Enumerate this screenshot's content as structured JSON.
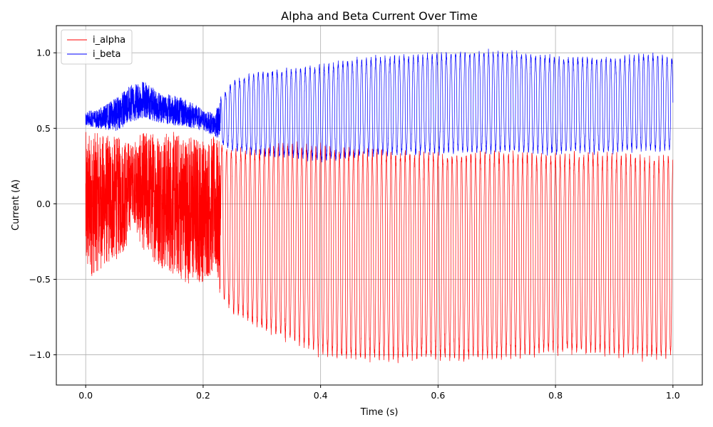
{
  "chart_data": {
    "type": "line",
    "title": "Alpha and Beta Current Over Time",
    "xlabel": "Time (s)",
    "ylabel": "Current (A)",
    "xlim": [
      -0.05,
      1.05
    ],
    "ylim": [
      -1.2,
      1.18
    ],
    "x_ticks": [
      0.0,
      0.2,
      0.4,
      0.6,
      0.8,
      1.0
    ],
    "x_tick_labels": [
      "0.0",
      "0.2",
      "0.4",
      "0.6",
      "0.8",
      "1.0"
    ],
    "y_ticks": [
      -1.0,
      -0.5,
      0.0,
      0.5,
      1.0
    ],
    "y_tick_labels": [
      "−1.0",
      "−0.5",
      "0.0",
      "0.5",
      "1.0"
    ],
    "grid": true,
    "legend_position": "top-left",
    "series": [
      {
        "name": "i_alpha",
        "color": "#ff0000",
        "envelope_x": [
          0.0,
          0.02,
          0.05,
          0.07,
          0.08,
          0.09,
          0.1,
          0.12,
          0.15,
          0.18,
          0.2,
          0.22,
          0.23,
          0.25,
          0.3,
          0.35,
          0.4,
          0.45,
          0.5,
          0.6,
          0.7,
          0.8,
          0.9,
          0.95,
          1.0
        ],
        "envelope_upper": [
          0.48,
          0.47,
          0.45,
          0.43,
          0.4,
          0.45,
          0.48,
          0.49,
          0.48,
          0.47,
          0.44,
          0.45,
          0.4,
          0.36,
          0.38,
          0.42,
          0.4,
          0.38,
          0.36,
          0.35,
          0.36,
          0.34,
          0.35,
          0.33,
          0.33
        ],
        "envelope_lower": [
          -0.52,
          -0.45,
          -0.38,
          -0.3,
          -0.08,
          -0.25,
          -0.32,
          -0.4,
          -0.48,
          -0.54,
          -0.52,
          -0.46,
          -0.62,
          -0.73,
          -0.85,
          -0.92,
          -1.02,
          -1.05,
          -1.05,
          -1.05,
          -1.04,
          -1.0,
          -1.02,
          -1.04,
          -1.03
        ],
        "oscillation_cycles": 125
      },
      {
        "name": "i_beta",
        "color": "#0000ff",
        "envelope_x": [
          0.0,
          0.02,
          0.05,
          0.08,
          0.1,
          0.12,
          0.15,
          0.18,
          0.2,
          0.22,
          0.23,
          0.25,
          0.3,
          0.35,
          0.4,
          0.45,
          0.5,
          0.6,
          0.7,
          0.8,
          0.9,
          0.95,
          1.0
        ],
        "envelope_upper": [
          0.62,
          0.62,
          0.7,
          0.8,
          0.82,
          0.75,
          0.72,
          0.68,
          0.62,
          0.6,
          0.7,
          0.82,
          0.88,
          0.9,
          0.92,
          0.96,
          0.98,
          1.0,
          1.02,
          0.98,
          0.97,
          1.0,
          0.97
        ],
        "envelope_lower": [
          0.52,
          0.5,
          0.48,
          0.54,
          0.57,
          0.54,
          0.52,
          0.5,
          0.48,
          0.45,
          0.4,
          0.35,
          0.32,
          0.3,
          0.28,
          0.3,
          0.32,
          0.33,
          0.34,
          0.33,
          0.34,
          0.35,
          0.34
        ],
        "oscillation_cycles": 125
      }
    ]
  }
}
